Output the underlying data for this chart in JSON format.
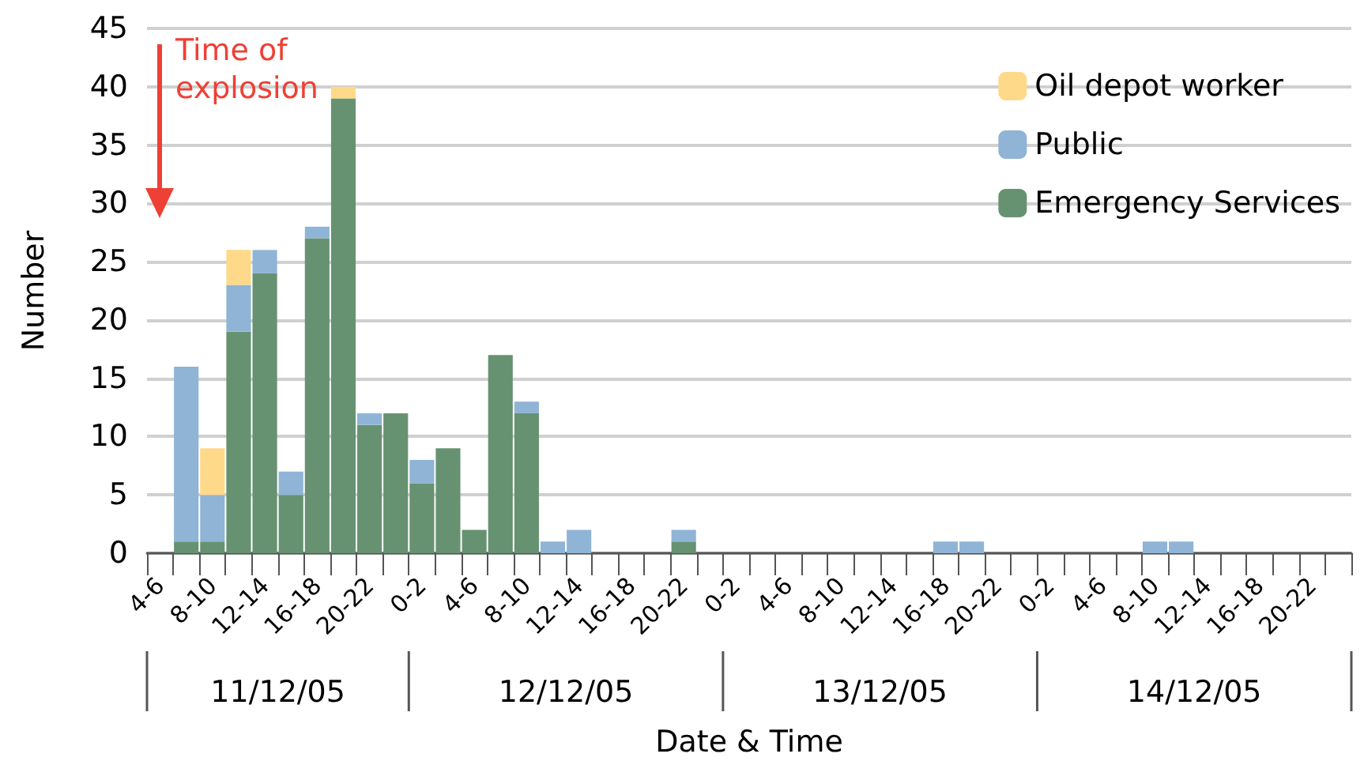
{
  "chart_data": {
    "type": "bar",
    "stacked": true,
    "xlabel": "Date & Time",
    "ylabel": "Number",
    "annotations": [
      "Time of explosion",
      "11/12/05",
      "12/12/05",
      "13/12/05",
      "14/12/05"
    ],
    "categories": [
      "4-6",
      null,
      "8-10",
      null,
      "12-14",
      null,
      "16-18",
      null,
      "20-22",
      null,
      "0-2",
      null,
      "4-6",
      null,
      "8-10",
      null,
      "12-14",
      null,
      "16-18",
      null,
      "20-22",
      null,
      "0-2",
      null,
      "4-6",
      null,
      "8-10",
      null,
      "12-14",
      null,
      "16-18",
      null,
      "20-22",
      null,
      "0-2",
      null,
      "4-6",
      null,
      "8-10",
      null,
      "12-14",
      null,
      "16-18",
      null,
      "20-22",
      null
    ],
    "series": [
      {
        "name": "Emergency Services",
        "color": "#679272",
        "values": [
          0,
          1,
          1,
          19,
          24,
          5,
          27,
          39,
          11,
          12,
          6,
          9,
          2,
          17,
          12,
          0,
          0,
          0,
          0,
          0,
          1,
          0,
          0,
          0,
          0,
          0,
          0,
          0,
          0,
          0,
          0,
          0,
          0,
          0,
          0,
          0,
          0,
          0,
          0,
          0,
          0,
          0,
          0,
          0,
          0,
          0
        ]
      },
      {
        "name": "Public",
        "color": "#8fb4d6",
        "values": [
          0,
          15,
          4,
          4,
          2,
          2,
          1,
          0,
          1,
          0,
          2,
          0,
          0,
          0,
          1,
          1,
          2,
          0,
          0,
          0,
          1,
          0,
          0,
          0,
          0,
          0,
          0,
          0,
          0,
          0,
          1,
          1,
          0,
          0,
          0,
          0,
          0,
          0,
          1,
          1,
          0,
          0,
          0,
          0,
          0,
          0
        ]
      },
      {
        "name": "Oil depot worker",
        "color": "#ffd98a",
        "values": [
          0,
          0,
          4,
          3,
          0,
          0,
          0,
          1,
          0,
          0,
          0,
          0,
          0,
          0,
          0,
          0,
          0,
          0,
          0,
          0,
          0,
          0,
          0,
          0,
          0,
          0,
          0,
          0,
          0,
          0,
          0,
          0,
          0,
          0,
          0,
          0,
          0,
          0,
          0,
          0,
          0,
          0,
          0,
          0,
          0,
          0
        ]
      }
    ],
    "ylim": [
      0,
      45
    ],
    "yticks": [
      0,
      5,
      10,
      15,
      20,
      25,
      30,
      35,
      40,
      45
    ],
    "grid": "y",
    "legend": "top right"
  }
}
